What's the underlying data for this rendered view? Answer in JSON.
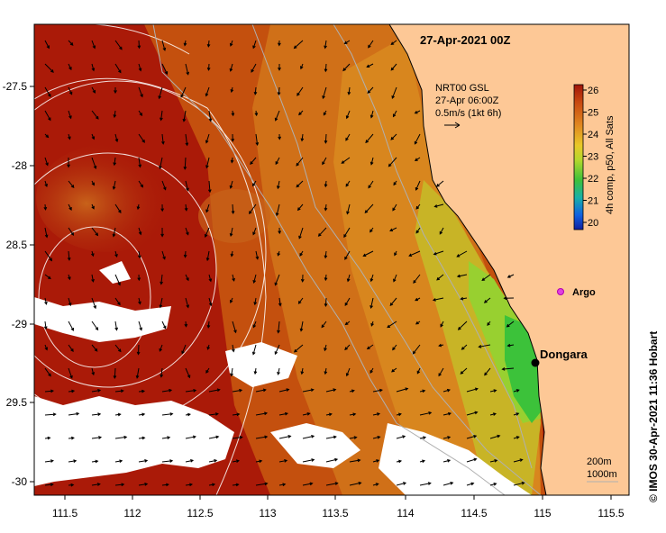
{
  "map": {
    "title": "27-Apr-2021 00Z",
    "lon_ticks": [
      "111.5",
      "112",
      "112.5",
      "113",
      "113.5",
      "114",
      "114.5",
      "115",
      "115.5"
    ],
    "lat_ticks": [
      "-27.5",
      "-28",
      "28.5",
      "-29",
      "29.5",
      "-30"
    ],
    "lon_range": [
      111.3,
      115.6
    ],
    "lat_range": [
      -30.1,
      -27.0
    ],
    "colors": {
      "warm_red": "#aa1a08",
      "mid_orange": "#c4500e",
      "orange": "#d8801c",
      "yellow_green": "#b4d02c",
      "green": "#3cc23a",
      "land": "#fdc896",
      "no_data": "#ffffff"
    }
  },
  "legend": {
    "current": {
      "source": "NRT00 GSL",
      "time": "27-Apr 06:00Z",
      "scale": "0.5m/s (1kt 6h)"
    },
    "colorbar": {
      "label": "4h comp, p50, All Sats",
      "ticks": [
        "26",
        "25",
        "24",
        "23",
        "22",
        "21",
        "20"
      ],
      "colors": [
        "#a0140a",
        "#c84810",
        "#e08820",
        "#e8c828",
        "#b4d82c",
        "#3cc03a",
        "#18b0a8",
        "#1060e0",
        "#1020a0"
      ]
    },
    "isobaths": [
      "200m",
      "1000m"
    ]
  },
  "places": {
    "dongara": "Dongara",
    "argo": "Argo"
  },
  "credit": "© IMOS 30-Apr-2021 11:36 Hobart"
}
